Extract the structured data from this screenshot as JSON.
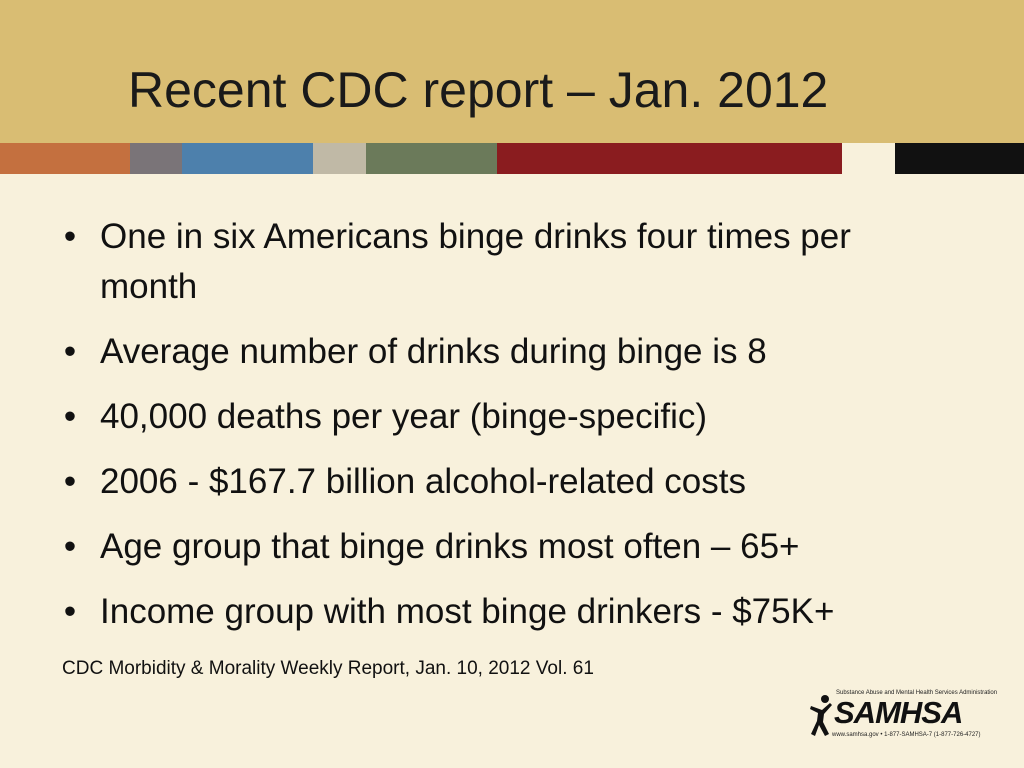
{
  "slide": {
    "title": "Recent CDC report – Jan. 2012",
    "bullets": [
      "One in six Americans binge drinks four times per month",
      "Average number of drinks during binge is 8",
      "40,000 deaths per year (binge-specific)",
      "2006 - $167.7 billion alcohol-related costs",
      "Age group that binge drinks most often – 65+",
      "Income group with most binge drinkers - $75K+"
    ],
    "citation": "CDC Morbidity & Morality Weekly Report, Jan. 10, 2012 Vol. 61"
  },
  "logo": {
    "tagline": "Substance Abuse and Mental Health Services Administration",
    "wordmark": "SAMHSA",
    "contact": "www.samhsa.gov • 1-877-SAMHSA-7 (1-877-726-4727)",
    "icon": "person-figure-icon"
  },
  "colors": {
    "background": "#f8f1dc",
    "title_bar": "#d9bd73",
    "stripe": [
      "#c4703f",
      "#7a7478",
      "#4d80ac",
      "#c0b9a6",
      "#6b7a5a",
      "#8a1c1f",
      "#f8f1dc",
      "#111111"
    ]
  }
}
